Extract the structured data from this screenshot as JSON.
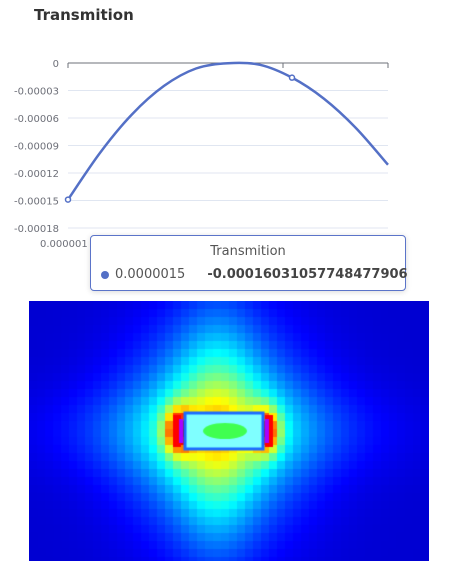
{
  "title": "Transmition",
  "series_color": "#5470c6",
  "chart_data": {
    "type": "line",
    "title": "Transmition",
    "x": [
      1e-06,
      1.1e-06,
      1.2e-06,
      1.3e-06,
      1.4e-06,
      1.5e-06,
      1.6e-06,
      1.7e-06,
      1.8e-06,
      1.9e-06,
      2e-06
    ],
    "series": [
      {
        "values": [
          -0.000149,
          -9.8e-05,
          -5.6e-05,
          -2.5e-05,
          -6e-06,
          -3e-07,
          -2e-06,
          -1.6e-05,
          -3.9e-05,
          -7.1e-05,
          -0.000111
        ]
      }
    ],
    "ylim": [
      -0.00018,
      0
    ],
    "y_ticks": [
      "0",
      "-0.00003",
      "-0.00006",
      "-0.00009",
      "-0.00012",
      "-0.00015",
      "-0.00018"
    ],
    "x_tick_label": "0.000001",
    "grid": true
  },
  "tooltip": {
    "title": "Transmition",
    "x_value": "0.0000015",
    "y_value": "-0.00016031057748477906"
  },
  "field_map": {
    "type": "heatmap",
    "colormap": [
      "#0000ff",
      "#0080ff",
      "#00ffff",
      "#00ff00",
      "#ffff00",
      "#ff0000",
      "#ff00ff"
    ]
  }
}
